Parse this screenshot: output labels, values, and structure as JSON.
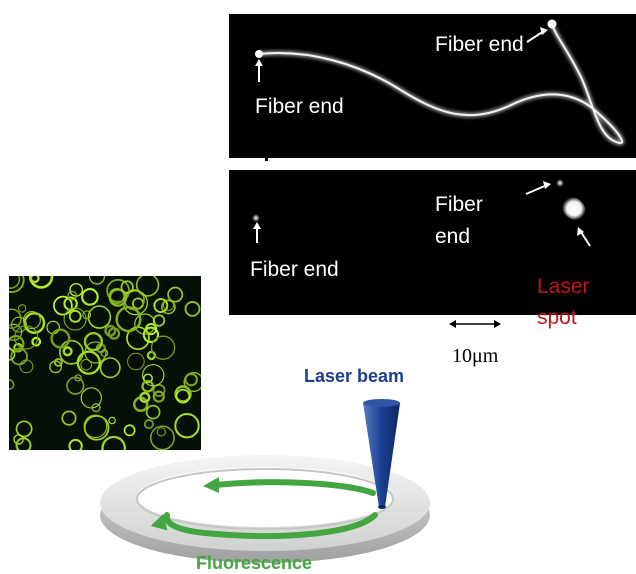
{
  "panels": {
    "top": {
      "labels": [
        "Fiber end",
        "Fiber end"
      ]
    },
    "bottom": {
      "labels": [
        "Fiber end",
        "Fiber",
        "end",
        "Laser",
        "spot"
      ]
    }
  },
  "scale_bar": {
    "label": "10μm"
  },
  "diagram": {
    "beam_label": "Laser beam",
    "ring_label": "Fluorescence"
  },
  "colors": {
    "laser_spot_text": "#c0141c",
    "beam_blue": "#1b3f92",
    "fluorescence_green": "#43a640",
    "panel_background": "#000000"
  }
}
